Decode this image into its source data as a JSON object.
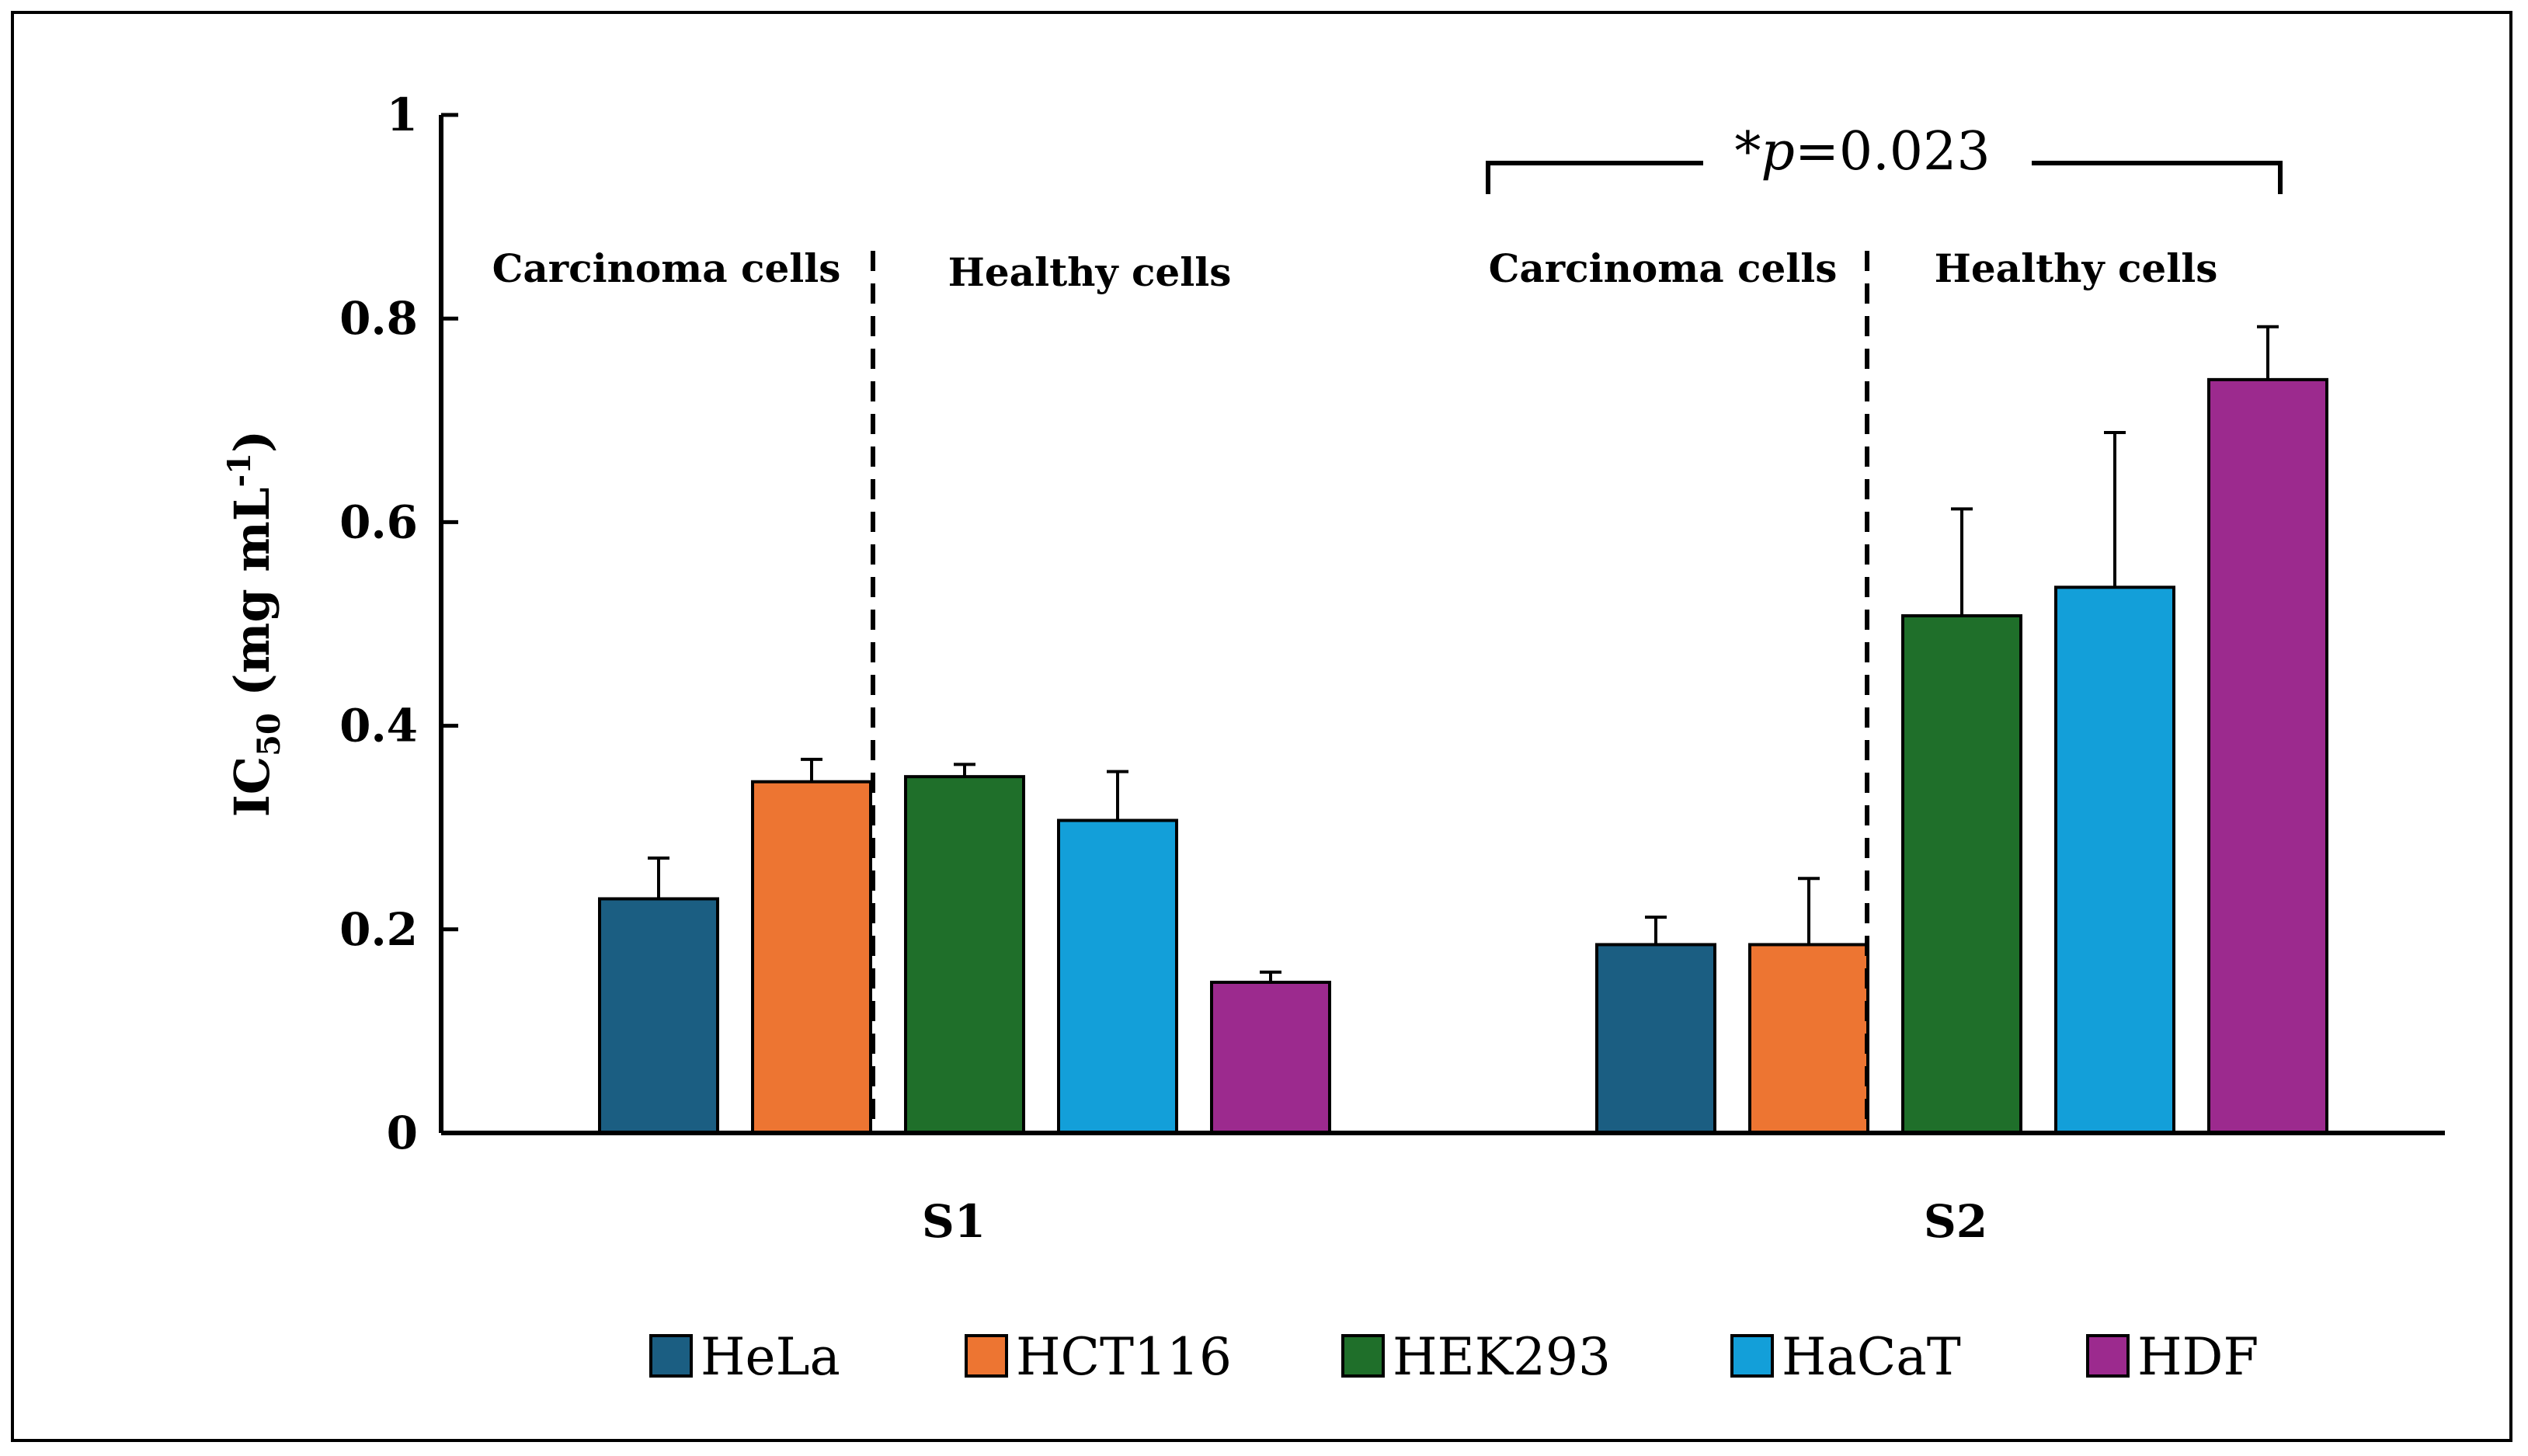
{
  "chart_data": {
    "type": "bar",
    "title": "",
    "xlabel": "",
    "ylabel": "IC",
    "ylabel_subscript": "50",
    "ylabel_unit_pre": " (mg mL",
    "ylabel_unit_sup": "-1",
    "ylabel_unit_post": ")",
    "ylim": [
      0,
      1
    ],
    "yticks": [
      0,
      0.2,
      0.4,
      0.6,
      0.8,
      1
    ],
    "ytick_labels": [
      "0",
      "0.2",
      "0.4",
      "0.6",
      "0.8",
      "1"
    ],
    "grid": false,
    "categories": [
      "S1",
      "S2"
    ],
    "series": [
      {
        "name": "HeLa",
        "color": "#1b5e82",
        "values": [
          0.23,
          0.185
        ],
        "errors": [
          0.04,
          0.027
        ]
      },
      {
        "name": "HCT116",
        "color": "#ed7532",
        "values": [
          0.345,
          0.185
        ],
        "errors": [
          0.022,
          0.065
        ]
      },
      {
        "name": "HEK293",
        "color": "#1f6f2a",
        "values": [
          0.35,
          0.508
        ],
        "errors": [
          0.012,
          0.105
        ]
      },
      {
        "name": "HaCaT",
        "color": "#139fd9",
        "values": [
          0.307,
          0.536
        ],
        "errors": [
          0.048,
          0.152
        ]
      },
      {
        "name": "HDF",
        "color": "#9c2a8e",
        "values": [
          0.148,
          0.74
        ],
        "errors": [
          0.01,
          0.052
        ]
      }
    ],
    "section_labels": {
      "carcinoma": "Carcinoma cells",
      "healthy": "Healthy cells"
    },
    "annotation": {
      "star": "*",
      "p_italic": "p",
      "value": "=0.023"
    },
    "legend_position": "bottom"
  }
}
